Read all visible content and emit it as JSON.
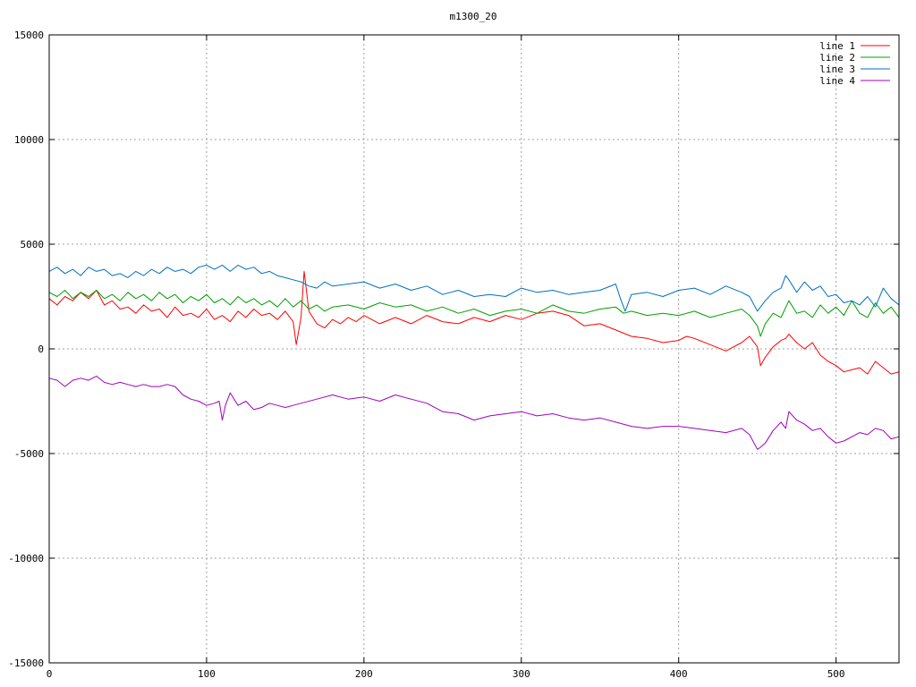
{
  "chart_data": {
    "type": "line",
    "title": "m1300_20",
    "xlabel": "",
    "ylabel": "",
    "xlim": [
      0,
      540
    ],
    "ylim": [
      -15000,
      15000
    ],
    "xticks": [
      0,
      100,
      200,
      300,
      400,
      500
    ],
    "yticks": [
      -15000,
      -10000,
      -5000,
      0,
      5000,
      10000,
      15000
    ],
    "grid": true,
    "legend_position": "top-right",
    "series": [
      {
        "name": "line 1",
        "color": "#ff0000",
        "x": [
          0,
          5,
          10,
          15,
          20,
          25,
          30,
          35,
          40,
          45,
          50,
          55,
          60,
          65,
          70,
          75,
          80,
          85,
          90,
          95,
          100,
          105,
          110,
          115,
          120,
          125,
          130,
          135,
          140,
          145,
          150,
          155,
          157,
          160,
          162,
          165,
          170,
          175,
          180,
          185,
          190,
          195,
          200,
          210,
          220,
          230,
          240,
          250,
          260,
          270,
          280,
          290,
          300,
          310,
          320,
          330,
          340,
          350,
          360,
          370,
          380,
          390,
          400,
          405,
          410,
          420,
          430,
          440,
          445,
          450,
          452,
          455,
          460,
          465,
          468,
          470,
          475,
          480,
          485,
          490,
          495,
          500,
          505,
          510,
          515,
          520,
          525,
          530,
          535,
          540
        ],
        "y": [
          2400,
          2100,
          2500,
          2300,
          2700,
          2400,
          2800,
          2100,
          2300,
          1900,
          2000,
          1700,
          2100,
          1800,
          1900,
          1500,
          2000,
          1600,
          1700,
          1500,
          1900,
          1400,
          1600,
          1300,
          1800,
          1500,
          1900,
          1600,
          1700,
          1400,
          1800,
          1300,
          200,
          1500,
          3700,
          1800,
          1200,
          1000,
          1400,
          1200,
          1500,
          1300,
          1600,
          1200,
          1500,
          1200,
          1600,
          1300,
          1200,
          1500,
          1300,
          1600,
          1400,
          1700,
          1800,
          1600,
          1100,
          1200,
          900,
          600,
          500,
          300,
          400,
          600,
          500,
          200,
          -100,
          300,
          600,
          100,
          -800,
          -400,
          100,
          400,
          500,
          700,
          300,
          0,
          300,
          -300,
          -600,
          -800,
          -1100,
          -1000,
          -900,
          -1200,
          -600,
          -900,
          -1200,
          -1100
        ]
      },
      {
        "name": "line 2",
        "color": "#00a000",
        "x": [
          0,
          5,
          10,
          15,
          20,
          25,
          30,
          35,
          40,
          45,
          50,
          55,
          60,
          65,
          70,
          75,
          80,
          85,
          90,
          95,
          100,
          105,
          110,
          115,
          120,
          125,
          130,
          135,
          140,
          145,
          150,
          155,
          160,
          165,
          170,
          175,
          180,
          190,
          200,
          210,
          220,
          230,
          240,
          250,
          260,
          270,
          280,
          290,
          300,
          310,
          320,
          330,
          340,
          350,
          360,
          365,
          370,
          380,
          390,
          400,
          410,
          420,
          430,
          440,
          445,
          450,
          452,
          455,
          460,
          465,
          470,
          475,
          480,
          485,
          490,
          495,
          500,
          505,
          510,
          515,
          520,
          525,
          530,
          535,
          540
        ],
        "y": [
          2700,
          2500,
          2800,
          2400,
          2700,
          2500,
          2800,
          2400,
          2600,
          2300,
          2700,
          2400,
          2600,
          2300,
          2700,
          2400,
          2600,
          2200,
          2500,
          2300,
          2600,
          2200,
          2400,
          2100,
          2500,
          2200,
          2400,
          2100,
          2300,
          2000,
          2400,
          2000,
          2300,
          1900,
          2100,
          1800,
          2000,
          2100,
          1900,
          2200,
          2000,
          2100,
          1800,
          2000,
          1700,
          1900,
          1600,
          1800,
          1900,
          1700,
          2100,
          1800,
          1700,
          1900,
          2000,
          1700,
          1800,
          1600,
          1700,
          1600,
          1800,
          1500,
          1700,
          1900,
          1600,
          1100,
          600,
          1200,
          1700,
          1500,
          2300,
          1700,
          1800,
          1500,
          2100,
          1700,
          2000,
          1600,
          2300,
          1700,
          1500,
          2200,
          1700,
          2000,
          1500
        ]
      },
      {
        "name": "line 3",
        "color": "#0070c0",
        "x": [
          0,
          5,
          10,
          15,
          20,
          25,
          30,
          35,
          40,
          45,
          50,
          55,
          60,
          65,
          70,
          75,
          80,
          85,
          90,
          95,
          100,
          105,
          110,
          115,
          120,
          125,
          130,
          135,
          140,
          145,
          150,
          155,
          160,
          165,
          170,
          175,
          180,
          190,
          200,
          210,
          220,
          230,
          240,
          250,
          260,
          270,
          280,
          290,
          300,
          310,
          320,
          330,
          340,
          350,
          360,
          363,
          366,
          370,
          380,
          390,
          400,
          410,
          420,
          430,
          440,
          445,
          450,
          452,
          455,
          460,
          465,
          468,
          470,
          475,
          480,
          485,
          490,
          495,
          500,
          505,
          510,
          515,
          520,
          525,
          530,
          535,
          540
        ],
        "y": [
          3700,
          3900,
          3600,
          3800,
          3500,
          3900,
          3700,
          3800,
          3500,
          3600,
          3400,
          3700,
          3500,
          3800,
          3600,
          3900,
          3700,
          3800,
          3600,
          3900,
          4000,
          3800,
          4000,
          3700,
          4000,
          3800,
          3900,
          3600,
          3700,
          3500,
          3400,
          3300,
          3200,
          3000,
          2900,
          3200,
          3000,
          3100,
          3200,
          2900,
          3100,
          2800,
          3000,
          2600,
          2800,
          2500,
          2600,
          2500,
          2900,
          2700,
          2800,
          2600,
          2700,
          2800,
          3100,
          2400,
          1800,
          2600,
          2700,
          2500,
          2800,
          2900,
          2600,
          3000,
          2700,
          2500,
          1800,
          2000,
          2300,
          2700,
          2900,
          3500,
          3300,
          2700,
          3200,
          2800,
          3000,
          2500,
          2600,
          2200,
          2300,
          2100,
          2500,
          2000,
          2900,
          2400,
          2100
        ]
      },
      {
        "name": "line 4",
        "color": "#a000c0",
        "x": [
          0,
          5,
          10,
          15,
          20,
          25,
          30,
          35,
          40,
          45,
          50,
          55,
          60,
          65,
          70,
          75,
          80,
          85,
          90,
          95,
          100,
          105,
          108,
          110,
          112,
          115,
          120,
          125,
          130,
          135,
          140,
          145,
          150,
          155,
          160,
          170,
          180,
          190,
          200,
          210,
          220,
          230,
          240,
          250,
          260,
          270,
          280,
          290,
          300,
          310,
          320,
          330,
          340,
          350,
          360,
          370,
          380,
          390,
          400,
          410,
          420,
          430,
          440,
          445,
          450,
          452,
          455,
          460,
          465,
          468,
          470,
          475,
          480,
          485,
          490,
          495,
          500,
          505,
          510,
          515,
          520,
          525,
          530,
          535,
          540
        ],
        "y": [
          -1400,
          -1500,
          -1800,
          -1500,
          -1400,
          -1500,
          -1300,
          -1600,
          -1700,
          -1600,
          -1700,
          -1800,
          -1700,
          -1800,
          -1800,
          -1700,
          -1800,
          -2200,
          -2400,
          -2500,
          -2700,
          -2600,
          -2500,
          -3400,
          -2700,
          -2100,
          -2700,
          -2500,
          -2900,
          -2800,
          -2600,
          -2700,
          -2800,
          -2700,
          -2600,
          -2400,
          -2200,
          -2400,
          -2300,
          -2500,
          -2200,
          -2400,
          -2600,
          -3000,
          -3100,
          -3400,
          -3200,
          -3100,
          -3000,
          -3200,
          -3100,
          -3300,
          -3400,
          -3300,
          -3500,
          -3700,
          -3800,
          -3700,
          -3700,
          -3800,
          -3900,
          -4000,
          -3800,
          -4100,
          -4800,
          -4700,
          -4500,
          -3900,
          -3500,
          -3800,
          -3000,
          -3400,
          -3600,
          -3900,
          -3800,
          -4200,
          -4500,
          -4400,
          -4200,
          -4000,
          -4100,
          -3800,
          -3900,
          -4300,
          -4200
        ]
      }
    ]
  }
}
